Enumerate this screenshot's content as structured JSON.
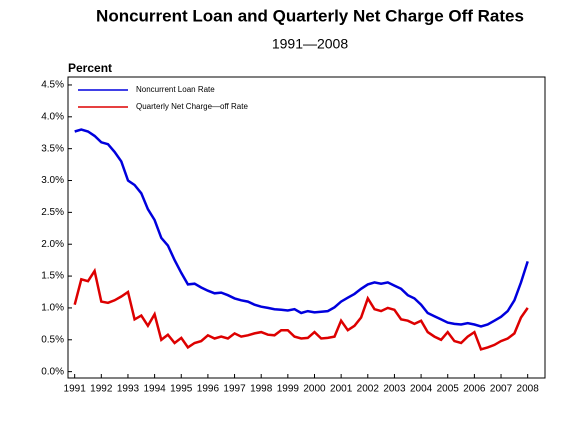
{
  "chart_data": {
    "type": "line",
    "title": "Noncurrent Loan and Quarterly Net Charge Off Rates",
    "subtitle": "1991—2008",
    "y_label": "Percent",
    "x": [
      1991,
      1991.25,
      1991.5,
      1991.75,
      1992,
      1992.25,
      1992.5,
      1992.75,
      1993,
      1993.25,
      1993.5,
      1993.75,
      1994,
      1994.25,
      1994.5,
      1994.75,
      1995,
      1995.25,
      1995.5,
      1995.75,
      1996,
      1996.25,
      1996.5,
      1996.75,
      1997,
      1997.25,
      1997.5,
      1997.75,
      1998,
      1998.25,
      1998.5,
      1998.75,
      1999,
      1999.25,
      1999.5,
      1999.75,
      2000,
      2000.25,
      2000.5,
      2000.75,
      2001,
      2001.25,
      2001.5,
      2001.75,
      2002,
      2002.25,
      2002.5,
      2002.75,
      2003,
      2003.25,
      2003.5,
      2003.75,
      2004,
      2004.25,
      2004.5,
      2004.75,
      2005,
      2005.25,
      2005.5,
      2005.75,
      2006,
      2006.25,
      2006.5,
      2006.75,
      2007,
      2007.25,
      2007.5,
      2007.75,
      2008
    ],
    "series": [
      {
        "name": "Noncurrent Loan Rate",
        "color": "#0000dd",
        "values": [
          3.77,
          3.8,
          3.77,
          3.7,
          3.6,
          3.57,
          3.45,
          3.3,
          3.0,
          2.93,
          2.8,
          2.55,
          2.38,
          2.1,
          1.98,
          1.75,
          1.55,
          1.37,
          1.38,
          1.32,
          1.27,
          1.23,
          1.24,
          1.2,
          1.15,
          1.12,
          1.1,
          1.05,
          1.02,
          1.0,
          0.98,
          0.97,
          0.96,
          0.98,
          0.92,
          0.95,
          0.93,
          0.94,
          0.95,
          1.01,
          1.1,
          1.16,
          1.22,
          1.3,
          1.37,
          1.4,
          1.38,
          1.4,
          1.35,
          1.3,
          1.2,
          1.15,
          1.05,
          0.92,
          0.87,
          0.82,
          0.77,
          0.75,
          0.74,
          0.76,
          0.74,
          0.71,
          0.74,
          0.8,
          0.86,
          0.95,
          1.12,
          1.4,
          1.73
        ]
      },
      {
        "name": "Quarterly Net Charge—off Rate",
        "color": "#dd0000",
        "values": [
          1.05,
          1.45,
          1.42,
          1.58,
          1.1,
          1.08,
          1.12,
          1.18,
          1.25,
          0.82,
          0.88,
          0.72,
          0.9,
          0.5,
          0.58,
          0.45,
          0.53,
          0.38,
          0.45,
          0.48,
          0.57,
          0.52,
          0.55,
          0.52,
          0.6,
          0.55,
          0.57,
          0.6,
          0.62,
          0.58,
          0.57,
          0.65,
          0.65,
          0.55,
          0.52,
          0.53,
          0.62,
          0.52,
          0.53,
          0.55,
          0.8,
          0.65,
          0.72,
          0.85,
          1.15,
          0.98,
          0.95,
          1.0,
          0.97,
          0.82,
          0.8,
          0.75,
          0.8,
          0.62,
          0.55,
          0.5,
          0.62,
          0.48,
          0.45,
          0.55,
          0.62,
          0.35,
          0.38,
          0.42,
          0.48,
          0.52,
          0.6,
          0.85,
          1.0
        ]
      }
    ],
    "xlim": [
      1990.75,
      2008.65
    ],
    "xticks": [
      1991,
      1992,
      1993,
      1994,
      1995,
      1996,
      1997,
      1998,
      1999,
      2000,
      2001,
      2002,
      2003,
      2004,
      2005,
      2006,
      2007,
      2008
    ],
    "ylim": [
      -0.1,
      4.625
    ],
    "yticks": [
      {
        "value": 0,
        "label": "0.0%"
      },
      {
        "value": 0.5,
        "label": "0.5%"
      },
      {
        "value": 1,
        "label": "1.0%"
      },
      {
        "value": 1.5,
        "label": "1.5%"
      },
      {
        "value": 2,
        "label": "2.0%"
      },
      {
        "value": 2.5,
        "label": "2.5%"
      },
      {
        "value": 3,
        "label": "3.0%"
      },
      {
        "value": 3.5,
        "label": "3.5%"
      },
      {
        "value": 4,
        "label": "4.0%"
      },
      {
        "value": 4.5,
        "label": "4.5%"
      }
    ],
    "legend": "top-left"
  }
}
